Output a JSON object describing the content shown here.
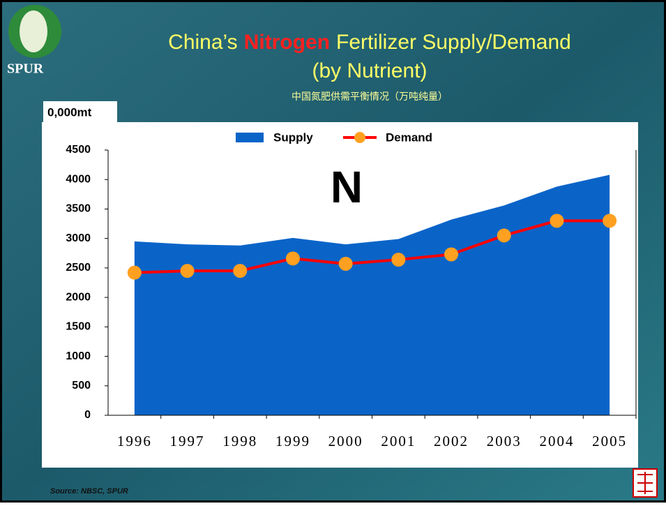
{
  "chart_data": {
    "type": "area_line",
    "title": {
      "before": "China’s",
      "highlight": "Nitrogen",
      "after": "Fertilizer Supply/Demand"
    },
    "subtitle": "(by Nutrient)",
    "subtitle_cn": "中国氮肥供需平衡情况（万吨纯量）",
    "y_label": "0,000mt",
    "annotation": "N",
    "source": "Source: NBSC, SPUR",
    "logo": "SPUR",
    "categories": [
      "1996",
      "1997",
      "1998",
      "1999",
      "2000",
      "2001",
      "2002",
      "2003",
      "2004",
      "2005"
    ],
    "series": [
      {
        "name": "Supply",
        "color": "#0a64c8",
        "values": [
          2950,
          2900,
          2880,
          3010,
          2900,
          2990,
          3320,
          3560,
          3880,
          4080
        ]
      },
      {
        "name": "Demand",
        "color": "#ff0000",
        "marker_color": "#ffa020",
        "values": [
          2420,
          2450,
          2450,
          2660,
          2570,
          2640,
          2730,
          3050,
          3300,
          3300
        ]
      }
    ],
    "ylim": [
      0,
      4500
    ],
    "yticks": [
      0,
      500,
      1000,
      1500,
      2000,
      2500,
      3000,
      3500,
      4000,
      4500
    ]
  }
}
